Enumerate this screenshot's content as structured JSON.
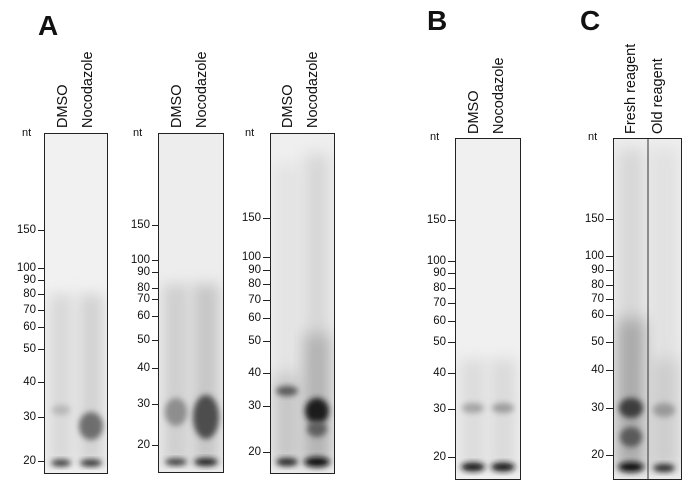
{
  "panels": {
    "A": {
      "letter": "A",
      "gels": [
        {
          "lanes": [
            "DMSO",
            "Nocodazole"
          ],
          "unit": "nt",
          "markers": [
            "150",
            "100",
            "90",
            "80",
            "70",
            "60",
            "50",
            "40",
            "30",
            "20"
          ]
        },
        {
          "lanes": [
            "DMSO",
            "Nocodazole"
          ],
          "unit": "nt",
          "markers": [
            "150",
            "100",
            "90",
            "80",
            "70",
            "60",
            "50",
            "40",
            "30",
            "20"
          ]
        },
        {
          "lanes": [
            "DMSO",
            "Nocodazole"
          ],
          "unit": "nt",
          "markers": [
            "150",
            "100",
            "90",
            "80",
            "70",
            "60",
            "50",
            "40",
            "30",
            "20"
          ]
        }
      ]
    },
    "B": {
      "letter": "B",
      "gels": [
        {
          "lanes": [
            "DMSO",
            "Nocodazole"
          ],
          "unit": "nt",
          "markers": [
            "150",
            "100",
            "90",
            "80",
            "70",
            "60",
            "50",
            "40",
            "30",
            "20"
          ]
        }
      ]
    },
    "C": {
      "letter": "C",
      "gels": [
        {
          "lanes": [
            "Fresh reagent",
            "Old reagent"
          ],
          "unit": "nt",
          "markers": [
            "150",
            "100",
            "90",
            "80",
            "70",
            "60",
            "50",
            "40",
            "30",
            "20"
          ]
        }
      ]
    }
  }
}
